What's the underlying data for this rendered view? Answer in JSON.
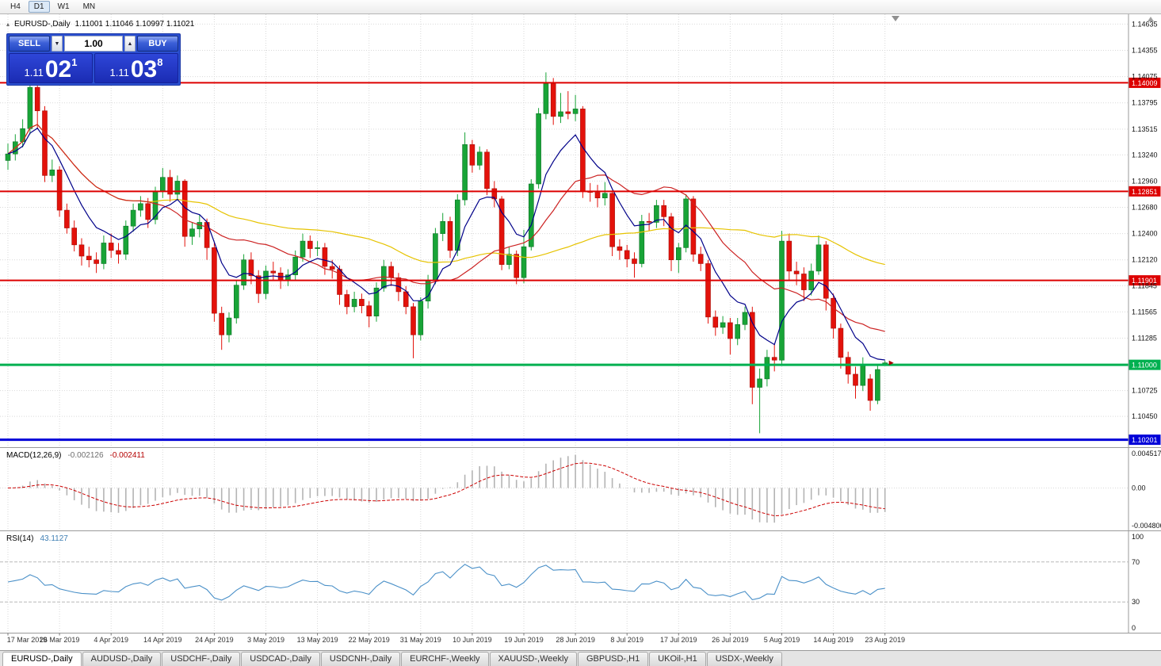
{
  "window": {
    "toolbar_periods": [
      {
        "label": "H4",
        "active": false
      },
      {
        "label": "D1",
        "active": true
      },
      {
        "label": "W1",
        "active": false
      },
      {
        "label": "MN",
        "active": false
      }
    ]
  },
  "icons": {
    "collapse": "▴",
    "volume_down": "▼",
    "volume_up": "▲",
    "shift_marker": "triangle-down",
    "axis_scroll": "triangle-up"
  },
  "chart": {
    "title_symbol": "EURUSD-,Daily",
    "title_ohlc": "1.11001 1.11046 1.10997 1.11021",
    "price_axis_labels": [
      "1.14635",
      "1.14355",
      "1.14075",
      "1.13795",
      "1.13515",
      "1.13240",
      "1.12960",
      "1.12680",
      "1.12400",
      "1.12120",
      "1.11845",
      "1.11565",
      "1.11285",
      "1.10725",
      "1.10450"
    ],
    "levels": [
      {
        "price": 1.14009,
        "label": "1.14009",
        "color": "#dd0000",
        "width": 2
      },
      {
        "price": 1.12851,
        "label": "1.12851",
        "color": "#dd0000",
        "width": 2
      },
      {
        "price": 1.11901,
        "label": "1.11901",
        "color": "#dd0000",
        "width": 2
      },
      {
        "price": 1.11,
        "label": "1.11000",
        "color": "#00b050",
        "width": 3
      },
      {
        "price": 1.10201,
        "label": "1.10201",
        "color": "#0000d8",
        "width": 3
      }
    ],
    "date_axis_labels": [
      "17 Mar 2019",
      "26 Mar 2019",
      "4 Apr 2019",
      "14 Apr 2019",
      "24 Apr 2019",
      "3 May 2019",
      "13 May 2019",
      "22 May 2019",
      "31 May 2019",
      "10 Jun 2019",
      "19 Jun 2019",
      "28 Jun 2019",
      "8 Jul 2019",
      "17 Jul 2019",
      "26 Jul 2019",
      "5 Aug 2019",
      "14 Aug 2019",
      "23 Aug 2019"
    ],
    "candles": [
      [
        1.1318,
        1.1336,
        1.1308,
        1.1325
      ],
      [
        1.1325,
        1.1346,
        1.1318,
        1.1338
      ],
      [
        1.1338,
        1.1362,
        1.1332,
        1.1352
      ],
      [
        1.1352,
        1.1405,
        1.1346,
        1.1396
      ],
      [
        1.1396,
        1.1404,
        1.1352,
        1.1371
      ],
      [
        1.1371,
        1.1376,
        1.1295,
        1.1302
      ],
      [
        1.1302,
        1.1319,
        1.1295,
        1.1308
      ],
      [
        1.1308,
        1.1312,
        1.1258,
        1.1265
      ],
      [
        1.1265,
        1.1272,
        1.124,
        1.1246
      ],
      [
        1.1246,
        1.1254,
        1.1221,
        1.1228
      ],
      [
        1.1228,
        1.1235,
        1.1206,
        1.1216
      ],
      [
        1.1216,
        1.1226,
        1.1204,
        1.1212
      ],
      [
        1.1212,
        1.122,
        1.1198,
        1.1208
      ],
      [
        1.1208,
        1.1238,
        1.1202,
        1.123
      ],
      [
        1.123,
        1.124,
        1.1214,
        1.1222
      ],
      [
        1.1222,
        1.123,
        1.1208,
        1.1218
      ],
      [
        1.1218,
        1.1254,
        1.1212,
        1.1248
      ],
      [
        1.1248,
        1.1272,
        1.1242,
        1.1265
      ],
      [
        1.1265,
        1.128,
        1.1258,
        1.1272
      ],
      [
        1.1272,
        1.1278,
        1.1246,
        1.1255
      ],
      [
        1.1255,
        1.129,
        1.125,
        1.1285
      ],
      [
        1.1285,
        1.131,
        1.1278,
        1.13
      ],
      [
        1.13,
        1.1308,
        1.1274,
        1.1282
      ],
      [
        1.1282,
        1.1302,
        1.1276,
        1.1296
      ],
      [
        1.1296,
        1.1298,
        1.1226,
        1.1237
      ],
      [
        1.1237,
        1.1252,
        1.1228,
        1.1245
      ],
      [
        1.1245,
        1.126,
        1.1236,
        1.1252
      ],
      [
        1.1252,
        1.1256,
        1.1212,
        1.1225
      ],
      [
        1.1225,
        1.123,
        1.1146,
        1.1155
      ],
      [
        1.1155,
        1.1162,
        1.1116,
        1.1132
      ],
      [
        1.1132,
        1.1156,
        1.1124,
        1.115
      ],
      [
        1.115,
        1.119,
        1.1144,
        1.1185
      ],
      [
        1.1185,
        1.1218,
        1.118,
        1.1212
      ],
      [
        1.1212,
        1.122,
        1.1186,
        1.1195
      ],
      [
        1.1195,
        1.1201,
        1.1166,
        1.1176
      ],
      [
        1.1176,
        1.1206,
        1.117,
        1.12
      ],
      [
        1.12,
        1.121,
        1.119,
        1.1198
      ],
      [
        1.1198,
        1.1204,
        1.1181,
        1.119
      ],
      [
        1.119,
        1.1202,
        1.1184,
        1.1196
      ],
      [
        1.1196,
        1.1222,
        1.119,
        1.1215
      ],
      [
        1.1215,
        1.124,
        1.121,
        1.1232
      ],
      [
        1.1232,
        1.1238,
        1.1214,
        1.1224
      ],
      [
        1.1224,
        1.1232,
        1.1216,
        1.1225
      ],
      [
        1.1225,
        1.123,
        1.1196,
        1.1205
      ],
      [
        1.1205,
        1.1212,
        1.1192,
        1.1202
      ],
      [
        1.1202,
        1.1206,
        1.1164,
        1.1175
      ],
      [
        1.1175,
        1.118,
        1.1154,
        1.1162
      ],
      [
        1.1162,
        1.1178,
        1.1156,
        1.117
      ],
      [
        1.117,
        1.1176,
        1.1155,
        1.1163
      ],
      [
        1.1163,
        1.1168,
        1.114,
        1.1152
      ],
      [
        1.1152,
        1.1188,
        1.1146,
        1.1182
      ],
      [
        1.1182,
        1.1212,
        1.1178,
        1.1205
      ],
      [
        1.1205,
        1.121,
        1.1184,
        1.1193
      ],
      [
        1.1193,
        1.1198,
        1.1168,
        1.1178
      ],
      [
        1.1178,
        1.1184,
        1.1154,
        1.1162
      ],
      [
        1.1162,
        1.1166,
        1.1107,
        1.1132
      ],
      [
        1.1132,
        1.1172,
        1.1126,
        1.1168
      ],
      [
        1.1168,
        1.1196,
        1.116,
        1.119
      ],
      [
        1.119,
        1.1246,
        1.1186,
        1.124
      ],
      [
        1.124,
        1.1262,
        1.1232,
        1.1253
      ],
      [
        1.1253,
        1.1258,
        1.1214,
        1.1222
      ],
      [
        1.1222,
        1.1282,
        1.1216,
        1.1276
      ],
      [
        1.1276,
        1.1348,
        1.127,
        1.1335
      ],
      [
        1.1335,
        1.134,
        1.1305,
        1.1313
      ],
      [
        1.1313,
        1.1333,
        1.1308,
        1.1327
      ],
      [
        1.1327,
        1.133,
        1.1281,
        1.1288
      ],
      [
        1.1288,
        1.1296,
        1.1268,
        1.1277
      ],
      [
        1.1277,
        1.128,
        1.1201,
        1.1207
      ],
      [
        1.1207,
        1.1226,
        1.1202,
        1.1218
      ],
      [
        1.1218,
        1.1222,
        1.1186,
        1.1193
      ],
      [
        1.1193,
        1.1244,
        1.1187,
        1.1226
      ],
      [
        1.1226,
        1.1298,
        1.1222,
        1.1293
      ],
      [
        1.1293,
        1.1374,
        1.1288,
        1.1368
      ],
      [
        1.1368,
        1.1412,
        1.1362,
        1.14
      ],
      [
        1.14,
        1.1406,
        1.1356,
        1.1365
      ],
      [
        1.1365,
        1.139,
        1.1358,
        1.137
      ],
      [
        1.137,
        1.1392,
        1.1362,
        1.1368
      ],
      [
        1.1368,
        1.1388,
        1.136,
        1.1373
      ],
      [
        1.1373,
        1.1376,
        1.1278,
        1.1285
      ],
      [
        1.1285,
        1.1294,
        1.1274,
        1.1284
      ],
      [
        1.1284,
        1.1292,
        1.1268,
        1.1278
      ],
      [
        1.1278,
        1.1295,
        1.127,
        1.1283
      ],
      [
        1.1283,
        1.1286,
        1.1216,
        1.1226
      ],
      [
        1.1226,
        1.1234,
        1.1212,
        1.1222
      ],
      [
        1.1222,
        1.1228,
        1.1204,
        1.1213
      ],
      [
        1.1213,
        1.122,
        1.1193,
        1.1208
      ],
      [
        1.1208,
        1.126,
        1.1204,
        1.1253
      ],
      [
        1.1253,
        1.1262,
        1.1243,
        1.1252
      ],
      [
        1.1252,
        1.1276,
        1.1246,
        1.127
      ],
      [
        1.127,
        1.1276,
        1.1248,
        1.1258
      ],
      [
        1.1258,
        1.1262,
        1.12,
        1.1212
      ],
      [
        1.1212,
        1.123,
        1.1198,
        1.1225
      ],
      [
        1.1225,
        1.1282,
        1.122,
        1.1277
      ],
      [
        1.1277,
        1.128,
        1.121,
        1.1218
      ],
      [
        1.1218,
        1.1226,
        1.12,
        1.1208
      ],
      [
        1.1208,
        1.1212,
        1.1144,
        1.1151
      ],
      [
        1.1151,
        1.1158,
        1.1131,
        1.114
      ],
      [
        1.114,
        1.1152,
        1.1133,
        1.1145
      ],
      [
        1.1145,
        1.115,
        1.1111,
        1.1128
      ],
      [
        1.1128,
        1.115,
        1.1121,
        1.1143
      ],
      [
        1.1143,
        1.1162,
        1.1137,
        1.1156
      ],
      [
        1.1156,
        1.1162,
        1.1058,
        1.1076
      ],
      [
        1.1076,
        1.1096,
        1.1027,
        1.1085
      ],
      [
        1.1085,
        1.1116,
        1.1077,
        1.1108
      ],
      [
        1.1108,
        1.1122,
        1.1093,
        1.1105
      ],
      [
        1.1105,
        1.1243,
        1.11,
        1.1232
      ],
      [
        1.1232,
        1.124,
        1.119,
        1.12
      ],
      [
        1.12,
        1.121,
        1.1185,
        1.1197
      ],
      [
        1.1197,
        1.1204,
        1.1168,
        1.118
      ],
      [
        1.118,
        1.1208,
        1.1174,
        1.12
      ],
      [
        1.12,
        1.1238,
        1.1196,
        1.1228
      ],
      [
        1.1228,
        1.1232,
        1.1158,
        1.1171
      ],
      [
        1.1171,
        1.1176,
        1.1128,
        1.1139
      ],
      [
        1.1139,
        1.1144,
        1.1096,
        1.1108
      ],
      [
        1.1108,
        1.1114,
        1.108,
        1.109
      ],
      [
        1.109,
        1.1098,
        1.1064,
        1.1078
      ],
      [
        1.1078,
        1.1108,
        1.1072,
        1.11
      ],
      [
        1.1085,
        1.109,
        1.1051,
        1.1062
      ],
      [
        1.1062,
        1.11,
        1.1058,
        1.1095
      ],
      [
        1.11001,
        1.11046,
        1.10997,
        1.11021
      ]
    ],
    "moving_averages": [
      {
        "type": "sma",
        "period": 50,
        "color_key": "ma_slow"
      },
      {
        "type": "sma",
        "period": 20,
        "color_key": "ma_mid"
      },
      {
        "type": "ema",
        "period": 8,
        "color_key": "ma_fast"
      }
    ]
  },
  "trade_panel": {
    "sell_label": "SELL",
    "buy_label": "BUY",
    "volume": "1.00",
    "sell_price": {
      "prefix": "1.11",
      "big": "02",
      "sup": "1"
    },
    "buy_price": {
      "prefix": "1.11",
      "big": "03",
      "sup": "8"
    }
  },
  "macd_panel": {
    "name": "MACD(12,26,9)",
    "value_main": "-0.002126",
    "value_signal": "-0.002411",
    "axis_labels": [
      "0.004517",
      "0.00",
      "-0.004806"
    ],
    "fast": 12,
    "slow": 26,
    "signal": 9
  },
  "rsi_panel": {
    "name": "RSI(14)",
    "value": "43.1127",
    "axis_labels": [
      "100",
      "70",
      "30",
      "0"
    ],
    "period": 14,
    "levels": [
      70,
      30
    ]
  },
  "tabs": [
    {
      "label": "EURUSD-,Daily",
      "active": true
    },
    {
      "label": "AUDUSD-,Daily",
      "active": false
    },
    {
      "label": "USDCHF-,Daily",
      "active": false
    },
    {
      "label": "USDCAD-,Daily",
      "active": false
    },
    {
      "label": "USDCNH-,Daily",
      "active": false
    },
    {
      "label": "EURCHF-,Weekly",
      "active": false
    },
    {
      "label": "XAUUSD-,Weekly",
      "active": false
    },
    {
      "label": "GBPUSD-,H1",
      "active": false
    },
    {
      "label": "UKOil-,H1",
      "active": false
    },
    {
      "label": "USDX-,Weekly",
      "active": false
    }
  ],
  "colors": {
    "bull": "#18a437",
    "bull_dark": "#0d7226",
    "bear": "#e3120b",
    "bear_dark": "#a50d08",
    "grid": "#d9d9d9",
    "ma_fast": "#000089",
    "ma_mid": "#cc2222",
    "ma_slow": "#e6c300",
    "macd_hist": "#b4b4b4",
    "macd_signal": "#cc0000",
    "rsi_line": "#4a90c8",
    "separator": "#9a9a9a"
  }
}
